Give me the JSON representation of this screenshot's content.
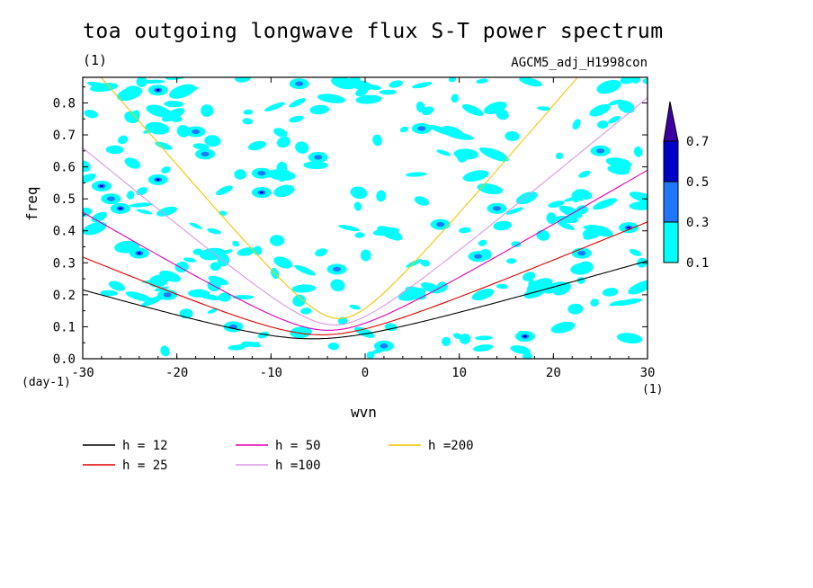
{
  "header": {
    "title": "toa outgoing longwave flux S-T power spectrum",
    "unit": "(1)",
    "model": "AGCM5_adj_H1998con"
  },
  "chart_data": {
    "type": "contour",
    "xlabel": "wvn",
    "ylabel": "freq",
    "x_unit": "(1)",
    "y_unit": "(day-1)",
    "xlim": [
      -30,
      30
    ],
    "ylim": [
      0,
      0.88
    ],
    "x_ticks": [
      -30,
      -20,
      -10,
      0,
      10,
      20,
      30
    ],
    "x_tick_labels": [
      "-30",
      "-20",
      "-10",
      "0",
      "10",
      "20",
      "30"
    ],
    "y_ticks": [
      0,
      0.1,
      0.2,
      0.3,
      0.4,
      0.5,
      0.6,
      0.7,
      0.8
    ],
    "y_tick_labels": [
      "0.0",
      "0.1",
      "0.2",
      "0.3",
      "0.4",
      "0.5",
      "0.6",
      "0.7",
      "0.8"
    ],
    "colorbar": {
      "levels": [
        "0.1",
        "0.3",
        "0.5",
        "0.7"
      ],
      "colors": [
        "#00ffff",
        "#1e78ff",
        "#0000c8",
        "#3c00a0"
      ]
    },
    "contour_blobs": [
      {
        "x": -24,
        "y": 0.33,
        "level": 2
      },
      {
        "x": -22,
        "y": 0.84,
        "level": 2
      },
      {
        "x": -18,
        "y": 0.71,
        "level": 1
      },
      {
        "x": -17,
        "y": 0.64,
        "level": 1
      },
      {
        "x": -28,
        "y": 0.54,
        "level": 2
      },
      {
        "x": -27,
        "y": 0.5,
        "level": 1
      },
      {
        "x": -26,
        "y": 0.47,
        "level": 2
      },
      {
        "x": -22,
        "y": 0.56,
        "level": 2
      },
      {
        "x": -21,
        "y": 0.2,
        "level": 1
      },
      {
        "x": -11,
        "y": 0.52,
        "level": 2
      },
      {
        "x": -11,
        "y": 0.58,
        "level": 1
      },
      {
        "x": -7,
        "y": 0.86,
        "level": 1
      },
      {
        "x": -5,
        "y": 0.63,
        "level": 1
      },
      {
        "x": 6,
        "y": 0.72,
        "level": 1
      },
      {
        "x": 8,
        "y": 0.42,
        "level": 1
      },
      {
        "x": 12,
        "y": 0.32,
        "level": 1
      },
      {
        "x": 14,
        "y": 0.47,
        "level": 1
      },
      {
        "x": 17,
        "y": 0.07,
        "level": 2
      },
      {
        "x": 23,
        "y": 0.33,
        "level": 1
      },
      {
        "x": 28,
        "y": 0.41,
        "level": 2
      },
      {
        "x": 25,
        "y": 0.65,
        "level": 1
      },
      {
        "x": 2,
        "y": 0.04,
        "level": 1
      },
      {
        "x": -14,
        "y": 0.1,
        "level": 1
      },
      {
        "x": -3,
        "y": 0.28,
        "level": 1
      }
    ],
    "series": [
      {
        "name": "h = 12",
        "color": "#000000",
        "h": 12
      },
      {
        "name": "h = 25",
        "color": "#e00000",
        "h": 25
      },
      {
        "name": "h = 50",
        "color": "#e000b4",
        "h": 50
      },
      {
        "name": "h =100",
        "color": "#dc96e6",
        "h": 100
      },
      {
        "name": "h =200",
        "color": "#f0c800",
        "h": 200
      }
    ]
  }
}
